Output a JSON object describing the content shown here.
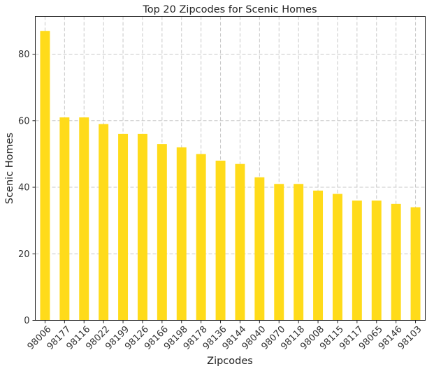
{
  "chart_data": {
    "type": "bar",
    "title": "Top 20 Zipcodes for Scenic Homes",
    "xlabel": "Zipcodes",
    "ylabel": "Scenic Homes",
    "categories": [
      "98006",
      "98177",
      "98116",
      "98022",
      "98199",
      "98126",
      "98166",
      "98198",
      "98178",
      "98136",
      "98144",
      "98040",
      "98070",
      "98118",
      "98008",
      "98115",
      "98117",
      "98065",
      "98146",
      "98103"
    ],
    "values": [
      87,
      61,
      61,
      59,
      56,
      56,
      53,
      52,
      50,
      48,
      47,
      43,
      41,
      41,
      39,
      38,
      36,
      36,
      35,
      34
    ],
    "ylim": [
      0,
      91.35
    ],
    "yticks": [
      0,
      20,
      40,
      60,
      80
    ],
    "grid": true,
    "legend": "none",
    "bar_color": "#FFDB1A"
  }
}
